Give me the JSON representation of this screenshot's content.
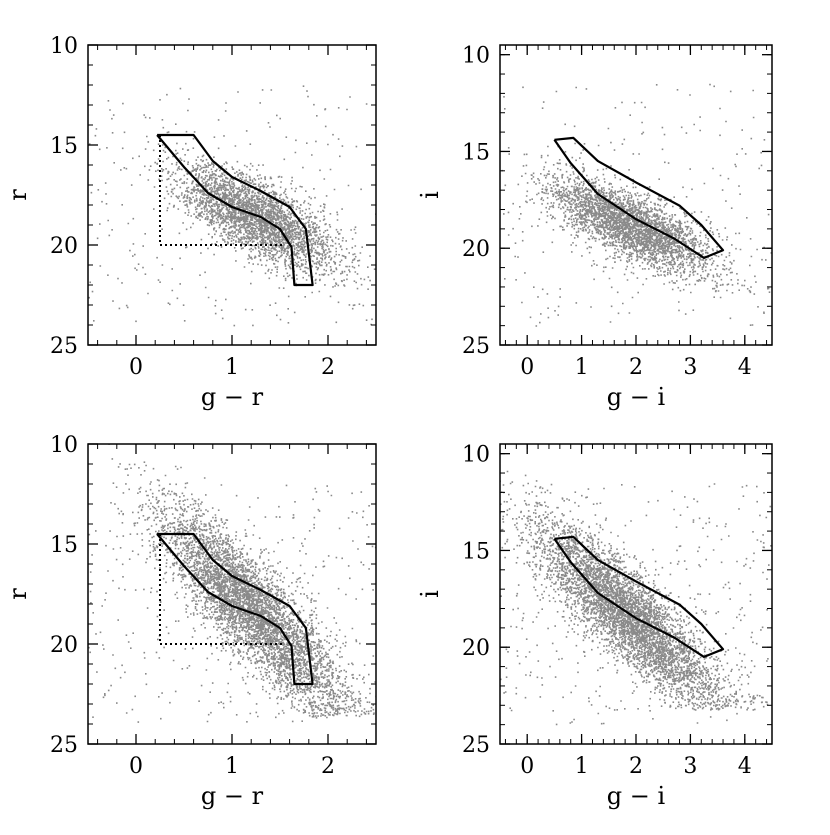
{
  "chart_data": [
    {
      "type": "scatter",
      "xlabel": "g − r",
      "ylabel": "r",
      "xlim": [
        -0.5,
        2.5
      ],
      "ylim": [
        25,
        10
      ],
      "x_ticks": [
        {
          "value": 0,
          "label": "0"
        },
        {
          "value": 1,
          "label": "1"
        },
        {
          "value": 2,
          "label": "2"
        }
      ],
      "y_ticks": [
        {
          "value": 10,
          "label": "10"
        },
        {
          "value": 15,
          "label": "15"
        },
        {
          "value": 20,
          "label": "20"
        },
        {
          "value": 25,
          "label": "25"
        }
      ],
      "point_color": "#8a8a8a",
      "cloud": {
        "center": [
          1.25,
          18.6
        ],
        "spread": [
          0.42,
          1.7
        ],
        "slope": 2.2,
        "faint_limit": 22.6,
        "n": 3500
      },
      "selection_box": [
        [
          0.25,
          14.5
        ],
        [
          0.25,
          20.0
        ],
        [
          1.55,
          20.0
        ]
      ],
      "selection_outline": [
        [
          0.22,
          14.5
        ],
        [
          0.6,
          14.5
        ],
        [
          0.8,
          15.8
        ],
        [
          1.0,
          16.6
        ],
        [
          1.3,
          17.3
        ],
        [
          1.6,
          18.1
        ],
        [
          1.77,
          19.2
        ],
        [
          1.84,
          22.0
        ],
        [
          1.65,
          22.0
        ],
        [
          1.62,
          20.1
        ],
        [
          1.5,
          19.2
        ],
        [
          1.3,
          18.6
        ],
        [
          1.0,
          18.1
        ],
        [
          0.75,
          17.4
        ],
        [
          0.5,
          16.1
        ],
        [
          0.22,
          14.5
        ]
      ]
    },
    {
      "type": "scatter",
      "xlabel": "g − i",
      "ylabel": "i",
      "xlim": [
        -0.5,
        4.5
      ],
      "ylim": [
        25,
        9.5
      ],
      "x_ticks": [
        {
          "value": 0,
          "label": "0"
        },
        {
          "value": 1,
          "label": "1"
        },
        {
          "value": 2,
          "label": "2"
        },
        {
          "value": 3,
          "label": "3"
        },
        {
          "value": 4,
          "label": "4"
        }
      ],
      "y_ticks": [
        {
          "value": 10,
          "label": "10"
        },
        {
          "value": 15,
          "label": "15"
        },
        {
          "value": 20,
          "label": "20"
        },
        {
          "value": 25,
          "label": "25"
        }
      ],
      "point_color": "#8a8a8a",
      "cloud": {
        "center": [
          1.9,
          18.8
        ],
        "spread": [
          0.75,
          1.5
        ],
        "slope": 1.2,
        "faint_limit": 22.3,
        "n": 3500
      },
      "selection_outline": [
        [
          0.5,
          14.4
        ],
        [
          0.85,
          14.3
        ],
        [
          1.3,
          15.5
        ],
        [
          2.0,
          16.6
        ],
        [
          2.8,
          17.8
        ],
        [
          3.2,
          18.8
        ],
        [
          3.6,
          20.1
        ],
        [
          3.25,
          20.5
        ],
        [
          2.7,
          19.5
        ],
        [
          2.0,
          18.5
        ],
        [
          1.3,
          17.2
        ],
        [
          0.8,
          15.6
        ],
        [
          0.5,
          14.4
        ]
      ]
    },
    {
      "type": "scatter",
      "xlabel": "g − r",
      "ylabel": "r",
      "xlim": [
        -0.5,
        2.5
      ],
      "ylim": [
        25,
        10
      ],
      "x_ticks": [
        {
          "value": 0,
          "label": "0"
        },
        {
          "value": 1,
          "label": "1"
        },
        {
          "value": 2,
          "label": "2"
        }
      ],
      "y_ticks": [
        {
          "value": 10,
          "label": "10"
        },
        {
          "value": 15,
          "label": "15"
        },
        {
          "value": 20,
          "label": "20"
        },
        {
          "value": 25,
          "label": "25"
        }
      ],
      "point_color": "#8a8a8a",
      "cloud": {
        "center": [
          1.2,
          18.3
        ],
        "spread": [
          0.48,
          2.4
        ],
        "slope": 4.6,
        "faint_limit": 23.6,
        "n": 5200
      },
      "selection_box": [
        [
          0.25,
          14.5
        ],
        [
          0.25,
          20.0
        ],
        [
          1.55,
          20.0
        ]
      ],
      "selection_outline": [
        [
          0.22,
          14.5
        ],
        [
          0.6,
          14.5
        ],
        [
          0.8,
          15.8
        ],
        [
          1.0,
          16.6
        ],
        [
          1.3,
          17.3
        ],
        [
          1.6,
          18.1
        ],
        [
          1.77,
          19.2
        ],
        [
          1.84,
          22.0
        ],
        [
          1.65,
          22.0
        ],
        [
          1.62,
          20.1
        ],
        [
          1.5,
          19.2
        ],
        [
          1.3,
          18.6
        ],
        [
          1.0,
          18.1
        ],
        [
          0.75,
          17.4
        ],
        [
          0.5,
          16.1
        ],
        [
          0.22,
          14.5
        ]
      ]
    },
    {
      "type": "scatter",
      "xlabel": "g − i",
      "ylabel": "i",
      "xlim": [
        -0.5,
        4.5
      ],
      "ylim": [
        25,
        9.5
      ],
      "x_ticks": [
        {
          "value": 0,
          "label": "0"
        },
        {
          "value": 1,
          "label": "1"
        },
        {
          "value": 2,
          "label": "2"
        },
        {
          "value": 3,
          "label": "3"
        },
        {
          "value": 4,
          "label": "4"
        }
      ],
      "y_ticks": [
        {
          "value": 10,
          "label": "10"
        },
        {
          "value": 15,
          "label": "15"
        },
        {
          "value": 20,
          "label": "20"
        },
        {
          "value": 25,
          "label": "25"
        }
      ],
      "point_color": "#8a8a8a",
      "cloud": {
        "center": [
          1.8,
          18.2
        ],
        "spread": [
          0.85,
          2.2
        ],
        "slope": 2.4,
        "faint_limit": 23.2,
        "n": 5200
      },
      "selection_outline": [
        [
          0.5,
          14.4
        ],
        [
          0.85,
          14.3
        ],
        [
          1.3,
          15.5
        ],
        [
          2.0,
          16.6
        ],
        [
          2.8,
          17.8
        ],
        [
          3.2,
          18.8
        ],
        [
          3.6,
          20.1
        ],
        [
          3.25,
          20.5
        ],
        [
          2.7,
          19.5
        ],
        [
          2.0,
          18.5
        ],
        [
          1.3,
          17.2
        ],
        [
          0.8,
          15.6
        ],
        [
          0.5,
          14.4
        ]
      ]
    }
  ]
}
